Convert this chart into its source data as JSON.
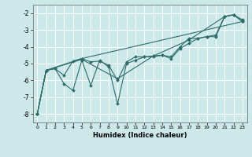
{
  "title": "",
  "xlabel": "Humidex (Indice chaleur)",
  "bg_color": "#cce8e8",
  "grid_color": "#ffffff",
  "line_color": "#2e6b6b",
  "xlim": [
    -0.5,
    23.5
  ],
  "ylim": [
    -8.5,
    -1.5
  ],
  "xticks": [
    0,
    1,
    2,
    3,
    4,
    5,
    6,
    7,
    8,
    9,
    10,
    11,
    12,
    13,
    14,
    15,
    16,
    17,
    18,
    19,
    20,
    21,
    22,
    23
  ],
  "yticks": [
    -8,
    -7,
    -6,
    -5,
    -4,
    -3,
    -2
  ],
  "series": [
    {
      "x": [
        0,
        1,
        2,
        3,
        4,
        5,
        6,
        7,
        8,
        9,
        10,
        11,
        12,
        13,
        14,
        15,
        16,
        17,
        18,
        19,
        20,
        21,
        22,
        23
      ],
      "y": [
        -8.0,
        -5.4,
        -5.3,
        -6.2,
        -6.6,
        -4.8,
        -6.3,
        -4.8,
        -5.2,
        -7.4,
        -5.0,
        -4.8,
        -4.6,
        -4.6,
        -4.5,
        -4.7,
        -4.1,
        -3.8,
        -3.5,
        -3.4,
        -3.4,
        -2.2,
        -2.1,
        -2.4
      ]
    },
    {
      "x": [
        0,
        1,
        2,
        3,
        4,
        5,
        6,
        7,
        8,
        9,
        10,
        11,
        12,
        13,
        14,
        15,
        16,
        17,
        18,
        19,
        20,
        21,
        22,
        23
      ],
      "y": [
        -8.0,
        -5.4,
        -5.3,
        -5.7,
        -4.85,
        -4.7,
        -4.9,
        -4.85,
        -5.1,
        -6.0,
        -4.9,
        -4.6,
        -4.6,
        -4.55,
        -4.5,
        -4.6,
        -4.0,
        -3.5,
        -3.5,
        -3.4,
        -3.3,
        -2.2,
        -2.1,
        -2.5
      ]
    },
    {
      "x": [
        0,
        1,
        5,
        9,
        13,
        17,
        21,
        22,
        23
      ],
      "y": [
        -8.0,
        -5.4,
        -4.75,
        -5.9,
        -4.55,
        -3.6,
        -2.2,
        -2.1,
        -2.5
      ]
    },
    {
      "x": [
        0,
        1,
        5,
        23
      ],
      "y": [
        -8.0,
        -5.4,
        -4.7,
        -2.5
      ]
    }
  ]
}
